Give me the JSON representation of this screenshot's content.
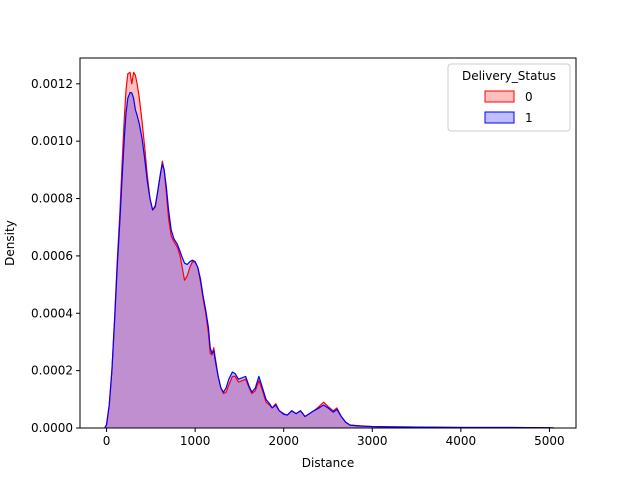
{
  "chart_data": {
    "type": "area",
    "title": "",
    "xlabel": "Distance",
    "ylabel": "Density",
    "xlim": [
      -300,
      5300
    ],
    "ylim": [
      0,
      0.00129
    ],
    "x_ticks": [
      0,
      1000,
      2000,
      3000,
      4000,
      5000
    ],
    "x_tick_labels": [
      "0",
      "1000",
      "2000",
      "3000",
      "4000",
      "5000"
    ],
    "y_ticks": [
      0,
      0.0002,
      0.0004,
      0.0006,
      0.0008,
      0.001,
      0.0012
    ],
    "y_tick_labels": [
      "0.0000",
      "0.0002",
      "0.0004",
      "0.0006",
      "0.0008",
      "0.0010",
      "0.0012"
    ],
    "grid": false,
    "legend": {
      "title": "Delivery_Status",
      "placement": "top-right",
      "entries": [
        "0",
        "1"
      ]
    },
    "series": [
      {
        "name": "0",
        "color": "#ff0000",
        "fill": "#ff0000",
        "fill_opacity": 0.25,
        "points": [
          [
            -20,
            0
          ],
          [
            0,
            1.2e-05
          ],
          [
            30,
            8e-05
          ],
          [
            60,
            0.0002
          ],
          [
            90,
            0.00038
          ],
          [
            120,
            0.00058
          ],
          [
            150,
            0.00075
          ],
          [
            175,
            0.00092
          ],
          [
            200,
            0.00108
          ],
          [
            220,
            0.00118
          ],
          [
            240,
            0.001235
          ],
          [
            265,
            0.00124
          ],
          [
            285,
            0.0012
          ],
          [
            305,
            0.00124
          ],
          [
            325,
            0.00123
          ],
          [
            345,
            0.0012
          ],
          [
            370,
            0.00115
          ],
          [
            400,
            0.00107
          ],
          [
            430,
            0.00098
          ],
          [
            460,
            0.00088
          ],
          [
            490,
            0.0008
          ],
          [
            520,
            0.00076
          ],
          [
            550,
            0.00077
          ],
          [
            580,
            0.00083
          ],
          [
            610,
            0.00089
          ],
          [
            630,
            0.00093
          ],
          [
            650,
            0.0009
          ],
          [
            675,
            0.00082
          ],
          [
            700,
            0.00073
          ],
          [
            730,
            0.00067
          ],
          [
            760,
            0.00065
          ],
          [
            800,
            0.00063
          ],
          [
            830,
            0.0006
          ],
          [
            860,
            0.00055
          ],
          [
            880,
            0.000515
          ],
          [
            910,
            0.00053
          ],
          [
            940,
            0.00056
          ],
          [
            970,
            0.00058
          ],
          [
            1000,
            0.000578
          ],
          [
            1030,
            0.00056
          ],
          [
            1060,
            0.00051
          ],
          [
            1090,
            0.00045
          ],
          [
            1120,
            0.0004
          ],
          [
            1150,
            0.00033
          ],
          [
            1170,
            0.00026
          ],
          [
            1190,
            0.000255
          ],
          [
            1210,
            0.00028
          ],
          [
            1230,
            0.00024
          ],
          [
            1260,
            0.00018
          ],
          [
            1290,
            0.00014
          ],
          [
            1320,
            0.00012
          ],
          [
            1350,
            0.000125
          ],
          [
            1380,
            0.00015
          ],
          [
            1420,
            0.00018
          ],
          [
            1450,
            0.00018
          ],
          [
            1490,
            0.00016
          ],
          [
            1530,
            0.000165
          ],
          [
            1570,
            0.00017
          ],
          [
            1610,
            0.00014
          ],
          [
            1640,
            0.00012
          ],
          [
            1680,
            0.00013
          ],
          [
            1720,
            0.000165
          ],
          [
            1760,
            0.00013
          ],
          [
            1800,
            9e-05
          ],
          [
            1840,
            8e-05
          ],
          [
            1870,
            7e-05
          ],
          [
            1910,
            8.5e-05
          ],
          [
            1950,
            6e-05
          ],
          [
            2000,
            5e-05
          ],
          [
            2040,
            4.5e-05
          ],
          [
            2090,
            6e-05
          ],
          [
            2140,
            5e-05
          ],
          [
            2190,
            6e-05
          ],
          [
            2240,
            4e-05
          ],
          [
            2290,
            5e-05
          ],
          [
            2340,
            6e-05
          ],
          [
            2400,
            7.5e-05
          ],
          [
            2450,
            9e-05
          ],
          [
            2500,
            7.5e-05
          ],
          [
            2560,
            6e-05
          ],
          [
            2600,
            7e-05
          ],
          [
            2650,
            4e-05
          ],
          [
            2700,
            2e-05
          ],
          [
            2750,
            1e-05
          ],
          [
            2850,
            8e-06
          ],
          [
            3000,
            5e-06
          ],
          [
            3200,
            4e-06
          ],
          [
            3500,
            3e-06
          ],
          [
            4000,
            2e-06
          ],
          [
            4500,
            2e-06
          ],
          [
            5000,
            1e-06
          ],
          [
            5050,
            0
          ]
        ]
      },
      {
        "name": "1",
        "color": "#0000ff",
        "fill": "#0000ff",
        "fill_opacity": 0.25,
        "points": [
          [
            -20,
            0
          ],
          [
            0,
            1.2e-05
          ],
          [
            30,
            8e-05
          ],
          [
            60,
            0.0002
          ],
          [
            90,
            0.00037
          ],
          [
            120,
            0.00056
          ],
          [
            150,
            0.00072
          ],
          [
            175,
            0.00087
          ],
          [
            200,
            0.00101
          ],
          [
            220,
            0.0011
          ],
          [
            240,
            0.00115
          ],
          [
            265,
            0.00117
          ],
          [
            285,
            0.001168
          ],
          [
            305,
            0.00115
          ],
          [
            325,
            0.00111
          ],
          [
            345,
            0.00109
          ],
          [
            370,
            0.00106
          ],
          [
            400,
            0.00101
          ],
          [
            430,
            0.00094
          ],
          [
            460,
            0.00086
          ],
          [
            490,
            0.0008
          ],
          [
            520,
            0.00076
          ],
          [
            550,
            0.000775
          ],
          [
            580,
            0.00083
          ],
          [
            610,
            0.00089
          ],
          [
            630,
            0.00092
          ],
          [
            650,
            0.0009
          ],
          [
            675,
            0.00084
          ],
          [
            700,
            0.00076
          ],
          [
            730,
            0.00069
          ],
          [
            760,
            0.00066
          ],
          [
            800,
            0.00064
          ],
          [
            830,
            0.000615
          ],
          [
            860,
            0.00059
          ],
          [
            880,
            0.000575
          ],
          [
            910,
            0.00057
          ],
          [
            940,
            0.00058
          ],
          [
            970,
            0.000585
          ],
          [
            1000,
            0.00058
          ],
          [
            1030,
            0.00056
          ],
          [
            1060,
            0.00052
          ],
          [
            1090,
            0.00046
          ],
          [
            1120,
            0.00041
          ],
          [
            1150,
            0.00035
          ],
          [
            1170,
            0.00028
          ],
          [
            1190,
            0.00026
          ],
          [
            1210,
            0.00027
          ],
          [
            1230,
            0.00023
          ],
          [
            1260,
            0.00018
          ],
          [
            1290,
            0.00014
          ],
          [
            1320,
            0.000125
          ],
          [
            1350,
            0.00014
          ],
          [
            1380,
            0.00017
          ],
          [
            1420,
            0.000195
          ],
          [
            1450,
            0.00019
          ],
          [
            1490,
            0.00017
          ],
          [
            1530,
            0.000175
          ],
          [
            1570,
            0.00018
          ],
          [
            1610,
            0.000145
          ],
          [
            1640,
            0.000125
          ],
          [
            1680,
            0.00014
          ],
          [
            1720,
            0.00018
          ],
          [
            1760,
            0.00014
          ],
          [
            1800,
            0.0001
          ],
          [
            1840,
            8.5e-05
          ],
          [
            1870,
            7e-05
          ],
          [
            1910,
            8e-05
          ],
          [
            1950,
            6e-05
          ],
          [
            2000,
            4.8e-05
          ],
          [
            2040,
            4.5e-05
          ],
          [
            2090,
            6e-05
          ],
          [
            2140,
            5e-05
          ],
          [
            2190,
            6e-05
          ],
          [
            2240,
            4e-05
          ],
          [
            2290,
            5e-05
          ],
          [
            2340,
            6e-05
          ],
          [
            2400,
            7e-05
          ],
          [
            2450,
            8e-05
          ],
          [
            2500,
            7e-05
          ],
          [
            2560,
            5.5e-05
          ],
          [
            2600,
            6.5e-05
          ],
          [
            2650,
            4e-05
          ],
          [
            2700,
            2e-05
          ],
          [
            2750,
            1e-05
          ],
          [
            2850,
            7e-06
          ],
          [
            3000,
            5e-06
          ],
          [
            3200,
            4e-06
          ],
          [
            3500,
            3e-06
          ],
          [
            4000,
            2e-06
          ],
          [
            4500,
            2e-06
          ],
          [
            5000,
            1e-06
          ],
          [
            5050,
            0
          ]
        ]
      }
    ]
  }
}
